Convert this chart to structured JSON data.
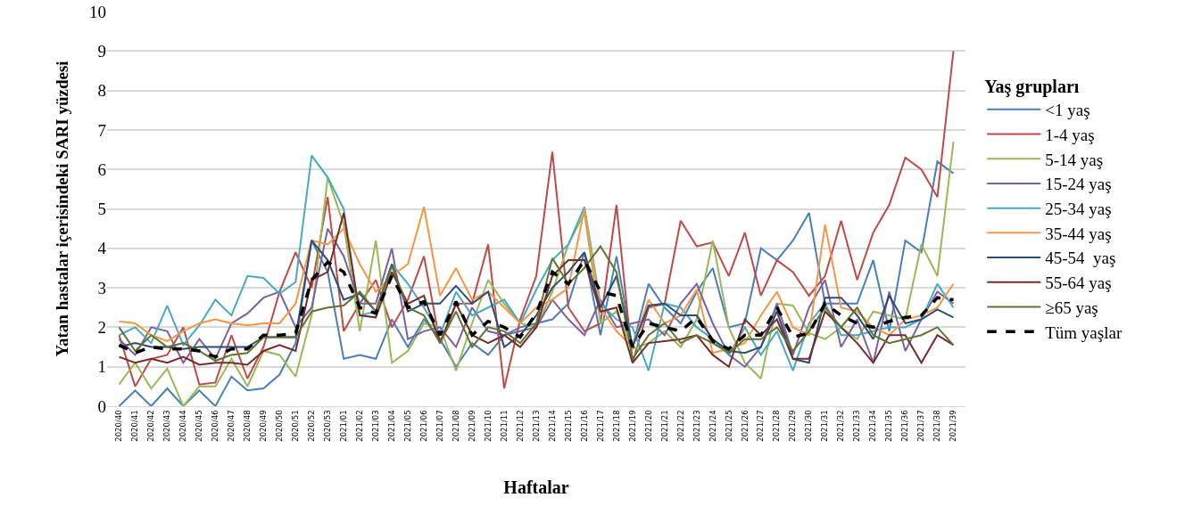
{
  "chart_data": {
    "type": "line",
    "xlabel": "Haftalar",
    "ylabel": "Yatan hastalar içerisindeki SARI yüzdesi",
    "legend_title": "Yaş grupları",
    "legend": "right",
    "grid": "y",
    "ylim": [
      0,
      10
    ],
    "yticks": [
      0,
      1,
      2,
      3,
      4,
      5,
      6,
      7,
      8,
      9,
      10
    ],
    "categories": [
      "2020/40",
      "2020/41",
      "2020/42",
      "2020/43",
      "2020/44",
      "2020/45",
      "2020/46",
      "2020/47",
      "2020/48",
      "2020/49",
      "2020/50",
      "2020/51",
      "2020/52",
      "2020/53",
      "2021/01",
      "2021/02",
      "2021/03",
      "2021/04",
      "2021/05",
      "2021/06",
      "2021/07",
      "2021/08",
      "2021/09",
      "2021/10",
      "2021/11",
      "2021/12",
      "2021/13",
      "2021/14",
      "2021/15",
      "2021/16",
      "2021/17",
      "2021/18",
      "2021/19",
      "2021/20",
      "2021/21",
      "2021/22",
      "2021/23",
      "2021/24",
      "2021/25",
      "2021/26",
      "2021/27",
      "2021/28",
      "2021/29",
      "2021/30",
      "2021/31",
      "2021/32",
      "2021/33",
      "2021/34",
      "2021/35",
      "2021/36",
      "2021/37",
      "2021/38",
      "2021/39"
    ],
    "series": [
      {
        "name": "<1 yaş",
        "color": "#4a7ebb",
        "values": [
          0,
          0.4,
          0,
          0.45,
          0,
          0.4,
          0,
          0.75,
          0.4,
          0.45,
          0.8,
          1.6,
          4.2,
          3.4,
          1.2,
          1.3,
          1.2,
          2.2,
          1.5,
          2.2,
          1.7,
          1.0,
          1.6,
          1.3,
          1.8,
          2.0,
          2.1,
          2.2,
          2.6,
          3.9,
          1.8,
          3.8,
          1.5,
          3.1,
          2.5,
          2.1,
          2.9,
          3.5,
          2.0,
          2.1,
          4.0,
          3.7,
          4.2,
          4.9,
          2.6,
          2.6,
          2.6,
          3.7,
          1.9,
          4.2,
          3.9,
          6.2,
          5.9
        ]
      },
      {
        "name": "1-4 yaş",
        "color": "#be4b48",
        "values": [
          1.8,
          0.5,
          1.2,
          1.3,
          2.0,
          0.55,
          0.6,
          1.8,
          0.7,
          1.5,
          2.9,
          3.9,
          3.0,
          5.3,
          1.9,
          2.6,
          3.2,
          2.0,
          2.7,
          3.8,
          1.6,
          2.6,
          2.6,
          4.1,
          0.45,
          2.2,
          3.3,
          6.45,
          2.5,
          1.9,
          2.1,
          5.1,
          1.1,
          2.5,
          2.6,
          4.7,
          4.05,
          4.15,
          3.3,
          4.4,
          2.8,
          3.7,
          3.4,
          2.8,
          3.3,
          4.7,
          3.2,
          4.4,
          5.1,
          6.3,
          6.0,
          5.3,
          9.0
        ]
      },
      {
        "name": "5-14 yaş",
        "color": "#98b954",
        "values": [
          0.55,
          1.1,
          0.45,
          0.95,
          0,
          0.5,
          0.5,
          1.2,
          0.5,
          1.4,
          1.3,
          0.75,
          2.3,
          5.8,
          4.6,
          1.9,
          4.2,
          1.1,
          1.4,
          2.1,
          2.0,
          0.9,
          2.1,
          3.2,
          2.6,
          2.1,
          2.0,
          2.9,
          4.1,
          4.9,
          2.1,
          2.4,
          1.45,
          1.6,
          1.9,
          1.5,
          2.2,
          4.2,
          2.0,
          1.1,
          0.7,
          2.6,
          2.55,
          1.85,
          1.7,
          2.0,
          1.7,
          2.4,
          2.3,
          2.2,
          4.1,
          3.3,
          6.7
        ]
      },
      {
        "name": "15-24 yaş",
        "color": "#7d60a0",
        "values": [
          1.7,
          1.3,
          2.0,
          1.9,
          1.1,
          1.7,
          1.2,
          2.1,
          2.35,
          2.75,
          2.9,
          2.0,
          2.5,
          4.5,
          3.8,
          2.6,
          2.6,
          4.0,
          1.7,
          1.9,
          2.0,
          1.5,
          2.5,
          1.9,
          1.8,
          1.9,
          2.0,
          2.7,
          2.2,
          1.8,
          2.7,
          2.0,
          2.1,
          2.2,
          1.8,
          2.6,
          3.1,
          2.1,
          1.3,
          1.0,
          1.5,
          2.6,
          1.3,
          2.5,
          3.2,
          1.5,
          2.2,
          1.1,
          2.9,
          1.4,
          2.2,
          2.9,
          2.6
        ]
      },
      {
        "name": "25-34 yaş",
        "color": "#46aac5",
        "values": [
          1.8,
          2.0,
          1.6,
          2.55,
          1.55,
          2.05,
          2.7,
          2.3,
          3.3,
          3.25,
          2.85,
          3.15,
          6.35,
          5.8,
          5.0,
          2.3,
          2.4,
          3.6,
          3.1,
          2.5,
          1.8,
          2.9,
          2.3,
          2.5,
          2.7,
          2.1,
          2.95,
          3.7,
          4.1,
          5.05,
          2.6,
          2.2,
          2.0,
          0.9,
          2.6,
          2.5,
          2.0,
          1.7,
          1.3,
          2.0,
          1.3,
          1.9,
          0.9,
          2.1,
          2.6,
          1.8,
          1.8,
          1.9,
          2.0,
          2.0,
          2.2,
          3.1,
          2.5
        ]
      },
      {
        "name": "35-44 yaş",
        "color": "#f79646",
        "values": [
          2.15,
          2.1,
          1.8,
          1.65,
          1.9,
          2.1,
          2.2,
          2.1,
          2.05,
          2.1,
          2.1,
          2.6,
          4.2,
          4.1,
          4.5,
          3.6,
          2.9,
          3.3,
          3.6,
          5.05,
          2.8,
          3.5,
          2.7,
          2.9,
          2.5,
          2.1,
          2.5,
          2.7,
          3.0,
          5.0,
          2.5,
          1.9,
          1.5,
          2.7,
          2.1,
          2.3,
          2.95,
          1.35,
          1.45,
          1.6,
          2.3,
          2.9,
          2.0,
          1.8,
          4.6,
          2.5,
          2.4,
          2.0,
          1.8,
          2.2,
          2.3,
          2.5,
          3.1
        ]
      },
      {
        "name": "45-54  yaş",
        "color": "#2c4d75",
        "values": [
          1.5,
          1.6,
          1.5,
          1.5,
          1.45,
          1.5,
          1.5,
          1.5,
          1.5,
          1.75,
          1.75,
          1.75,
          4.2,
          3.7,
          2.7,
          2.85,
          2.4,
          3.6,
          2.4,
          2.6,
          2.6,
          3.05,
          2.6,
          2.9,
          1.5,
          1.8,
          2.3,
          3.0,
          3.4,
          3.9,
          2.5,
          3.3,
          1.5,
          2.55,
          2.6,
          2.3,
          2.3,
          1.7,
          1.4,
          1.35,
          1.5,
          2.4,
          1.2,
          1.1,
          2.75,
          2.75,
          2.3,
          1.7,
          2.8,
          2.1,
          2.2,
          2.45,
          2.25
        ]
      },
      {
        "name": "55-64 yaş",
        "color": "#772c2a",
        "values": [
          1.25,
          1.1,
          1.2,
          1.1,
          1.25,
          1.05,
          1.1,
          1.1,
          1.05,
          1.4,
          1.55,
          1.4,
          3.2,
          3.4,
          4.9,
          2.3,
          2.25,
          3.4,
          2.6,
          2.8,
          1.6,
          2.6,
          1.8,
          1.6,
          1.8,
          1.5,
          2.0,
          3.3,
          3.7,
          3.7,
          2.4,
          2.5,
          1.1,
          1.6,
          1.65,
          1.7,
          1.8,
          1.3,
          1.0,
          2.2,
          1.8,
          2.2,
          1.2,
          1.2,
          2.4,
          2.0,
          1.6,
          1.1,
          1.8,
          1.8,
          1.1,
          1.8,
          1.55
        ]
      },
      {
        "name": "≥65 yaş",
        "color": "#5f7530",
        "values": [
          2.0,
          1.4,
          1.8,
          1.5,
          1.6,
          1.4,
          1.15,
          1.3,
          1.35,
          1.75,
          1.75,
          1.75,
          2.4,
          2.5,
          2.55,
          2.9,
          2.4,
          3.55,
          2.5,
          2.3,
          1.6,
          2.4,
          1.5,
          2.0,
          1.9,
          1.6,
          2.1,
          3.75,
          3.1,
          3.5,
          4.05,
          3.4,
          1.2,
          1.8,
          2.1,
          1.6,
          1.8,
          1.6,
          1.35,
          1.7,
          1.7,
          2.0,
          1.4,
          1.9,
          2.5,
          2.0,
          2.5,
          1.8,
          1.6,
          1.7,
          1.8,
          2.0,
          1.55
        ]
      },
      {
        "name": "Tüm yaşlar",
        "color": "#000000",
        "line_style": "dashed",
        "values": [
          1.55,
          1.35,
          1.5,
          1.45,
          1.45,
          1.4,
          1.25,
          1.45,
          1.45,
          1.8,
          1.8,
          1.85,
          3.2,
          3.65,
          3.4,
          2.5,
          2.35,
          3.3,
          2.5,
          2.65,
          1.8,
          2.65,
          1.8,
          2.15,
          2.0,
          1.75,
          2.35,
          3.4,
          3.1,
          3.7,
          2.9,
          2.8,
          1.5,
          2.1,
          2.0,
          1.9,
          2.25,
          1.65,
          1.45,
          1.8,
          1.8,
          2.5,
          1.75,
          1.85,
          2.6,
          2.3,
          2.1,
          2.0,
          2.15,
          2.25,
          2.3,
          2.75,
          2.7
        ]
      }
    ]
  }
}
